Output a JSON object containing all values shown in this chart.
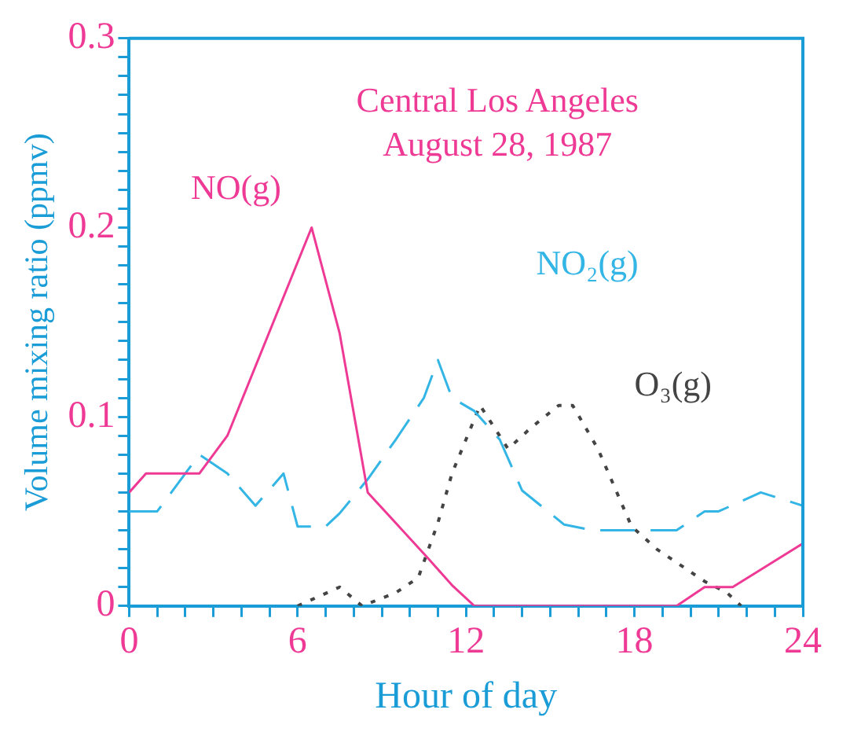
{
  "chart_data": {
    "type": "line",
    "title": "Central Los Angeles\nAugust 28, 1987",
    "xlabel": "Hour of day",
    "ylabel": "Volume mixing ratio (ppmv)",
    "xlim": [
      0,
      24
    ],
    "xticks": [
      0,
      {
        "value": 1,
        "label": null
      },
      {
        "value": 2,
        "label": null
      },
      {
        "value": 3,
        "label": null
      },
      {
        "value": 4,
        "label": null
      },
      {
        "value": 5,
        "label": null
      },
      6,
      {
        "value": 7,
        "label": null
      },
      {
        "value": 8,
        "label": null
      },
      {
        "value": 9,
        "label": null
      },
      {
        "value": 10,
        "label": null
      },
      {
        "value": 11,
        "label": null
      },
      12,
      {
        "value": 13,
        "label": null
      },
      {
        "value": 14,
        "label": null
      },
      {
        "value": 15,
        "label": null
      },
      {
        "value": 16,
        "label": null
      },
      {
        "value": 17,
        "label": null
      },
      18,
      {
        "value": 19,
        "label": null
      },
      {
        "value": 20,
        "label": null
      },
      {
        "value": 21,
        "label": null
      },
      {
        "value": 22,
        "label": null
      },
      {
        "value": 23,
        "label": null
      },
      24
    ],
    "ylim": [
      0,
      0.3
    ],
    "yticks": [
      0,
      {
        "value": 0.01,
        "label": null
      },
      {
        "value": 0.02,
        "label": null
      },
      {
        "value": 0.03,
        "label": null
      },
      {
        "value": 0.04,
        "label": null
      },
      {
        "value": 0.05,
        "label": null
      },
      {
        "value": 0.06,
        "label": null
      },
      {
        "value": 0.07,
        "label": null
      },
      {
        "value": 0.08,
        "label": null
      },
      {
        "value": 0.09,
        "label": null
      },
      0.1,
      {
        "value": 0.11,
        "label": null
      },
      {
        "value": 0.12,
        "label": null
      },
      {
        "value": 0.13,
        "label": null
      },
      {
        "value": 0.14,
        "label": null
      },
      {
        "value": 0.15,
        "label": null
      },
      {
        "value": 0.16,
        "label": null
      },
      {
        "value": 0.17,
        "label": null
      },
      {
        "value": 0.18,
        "label": null
      },
      {
        "value": 0.19,
        "label": null
      },
      0.2,
      {
        "value": 0.21,
        "label": null
      },
      {
        "value": 0.22,
        "label": null
      },
      {
        "value": 0.23,
        "label": null
      },
      {
        "value": 0.24,
        "label": null
      },
      {
        "value": 0.25,
        "label": null
      },
      {
        "value": 0.26,
        "label": null
      },
      {
        "value": 0.27,
        "label": null
      },
      {
        "value": 0.28,
        "label": null
      },
      {
        "value": 0.29,
        "label": null
      },
      0.3
    ],
    "marker": "none",
    "grid": false,
    "legend": false,
    "series": [
      {
        "name": "NO(g)",
        "color": "#ee3a95",
        "line_style": "solid",
        "x": [
          0,
          0.6,
          2.5,
          3.5,
          6.5,
          7.5,
          8.5,
          10.6,
          11.5,
          12.3,
          19.5,
          20.5,
          21.5,
          24
        ],
        "values": [
          0.06,
          0.07,
          0.07,
          0.09,
          0.2,
          0.144,
          0.06,
          0.026,
          0.011,
          0,
          0,
          0.01,
          0.01,
          0.033
        ]
      },
      {
        "name": "NO₂(g)",
        "color": "#33b5e5",
        "line_style": "dashed",
        "x": [
          0,
          1,
          2.5,
          3.5,
          4.5,
          5.5,
          6,
          7,
          7.5,
          8.5,
          9.5,
          10.5,
          11,
          11.5,
          12.3,
          13.2,
          14,
          15.5,
          16.5,
          18,
          19.5,
          20.5,
          21,
          22.5,
          24
        ],
        "values": [
          0.05,
          0.05,
          0.08,
          0.07,
          0.053,
          0.07,
          0.042,
          0.042,
          0.049,
          0.067,
          0.088,
          0.11,
          0.13,
          0.11,
          0.103,
          0.088,
          0.061,
          0.043,
          0.04,
          0.04,
          0.04,
          0.05,
          0.05,
          0.06,
          0.053
        ]
      },
      {
        "name": "O₃(g)",
        "color": "#444444",
        "line_style": "dotted",
        "x": [
          6,
          7.5,
          8.3,
          9.5,
          10.3,
          11,
          11.5,
          12.5,
          13.5,
          14.3,
          15.3,
          15.8,
          16.7,
          17.9,
          18.8,
          19.6,
          20.5,
          21.3,
          21.8
        ],
        "values": [
          0,
          0.01,
          0,
          0.007,
          0.015,
          0.044,
          0.07,
          0.106,
          0.083,
          0.094,
          0.106,
          0.106,
          0.083,
          0.042,
          0.03,
          0.022,
          0.013,
          0.007,
          0
        ]
      }
    ]
  }
}
